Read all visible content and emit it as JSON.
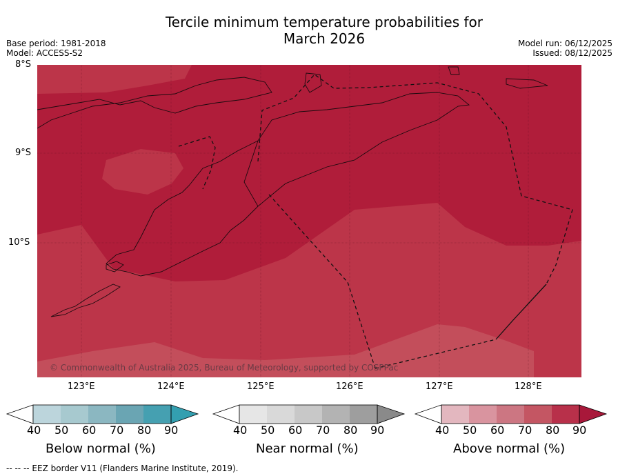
{
  "title_line1": "Tercile minimum temperature probabilities for",
  "title_line2": "March 2026",
  "base_period": "Base period: 1981-2018",
  "model": "Model: ACCESS-S2",
  "model_run": "Model run: 06/12/2025",
  "issued": "Issued: 08/12/2025",
  "lat_labels": [
    "8°S",
    "9°S",
    "10°S"
  ],
  "lon_labels": [
    "123°E",
    "124°E",
    "125°E",
    "126°E",
    "127°E",
    "128°E"
  ],
  "credit": "© Commonwealth of Australia 2025, Bureau of Meteorology, supported by COSPPac",
  "footer": "-- -- -- EEZ border V11 (Flanders Marine Institute, 2019).",
  "colorbars": {
    "below": {
      "label": "Below normal (%)",
      "ticks": [
        "40",
        "50",
        "60",
        "70",
        "80",
        "90"
      ],
      "colors": [
        "#bcd5dc",
        "#a7c9cf",
        "#8bb7c1",
        "#6aa5b3",
        "#45a0b1",
        "#339fb0"
      ]
    },
    "near": {
      "label": "Near normal (%)",
      "ticks": [
        "40",
        "50",
        "60",
        "70",
        "80",
        "90"
      ],
      "colors": [
        "#e6e6e6",
        "#d9d9d9",
        "#c8c8c8",
        "#b3b3b3",
        "#9e9e9e",
        "#8a8a8a"
      ]
    },
    "above": {
      "label": "Above normal (%)",
      "ticks": [
        "40",
        "50",
        "60",
        "70",
        "80",
        "90"
      ],
      "colors": [
        "#e3b7bf",
        "#d9949f",
        "#cc7682",
        "#c45663",
        "#b8304a",
        "#a8183a"
      ]
    }
  },
  "map": {
    "colors": {
      "band_80_90": "#b01d3a",
      "band_70_80": "#bc3549",
      "band_60_70": "#c34e5b"
    }
  }
}
